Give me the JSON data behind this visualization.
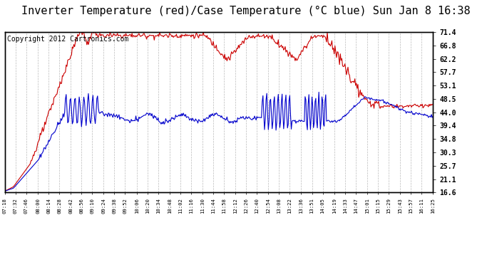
{
  "title": "Inverter Temperature (red)/Case Temperature (°C blue) Sun Jan 8 16:38",
  "copyright": "Copyright 2012 Cartronics.com",
  "ylabel_right_ticks": [
    16.6,
    21.1,
    25.7,
    30.3,
    34.8,
    39.4,
    44.0,
    48.5,
    53.1,
    57.7,
    62.2,
    66.8,
    71.4
  ],
  "ymin": 16.6,
  "ymax": 71.4,
  "red_color": "#cc0000",
  "blue_color": "#0000cc",
  "bg_color": "#ffffff",
  "grid_color": "#bbbbbb",
  "title_fontsize": 11,
  "copyright_fontsize": 7,
  "x_labels": [
    "07:18",
    "07:32",
    "07:46",
    "08:00",
    "08:14",
    "08:28",
    "08:42",
    "08:56",
    "09:10",
    "09:24",
    "09:38",
    "09:52",
    "10:06",
    "10:20",
    "10:34",
    "10:48",
    "11:02",
    "11:16",
    "11:30",
    "11:44",
    "11:58",
    "12:12",
    "12:26",
    "12:40",
    "12:54",
    "13:08",
    "13:22",
    "13:36",
    "13:51",
    "14:05",
    "14:19",
    "14:33",
    "14:47",
    "15:01",
    "15:15",
    "15:29",
    "15:43",
    "15:57",
    "16:11",
    "16:25"
  ]
}
